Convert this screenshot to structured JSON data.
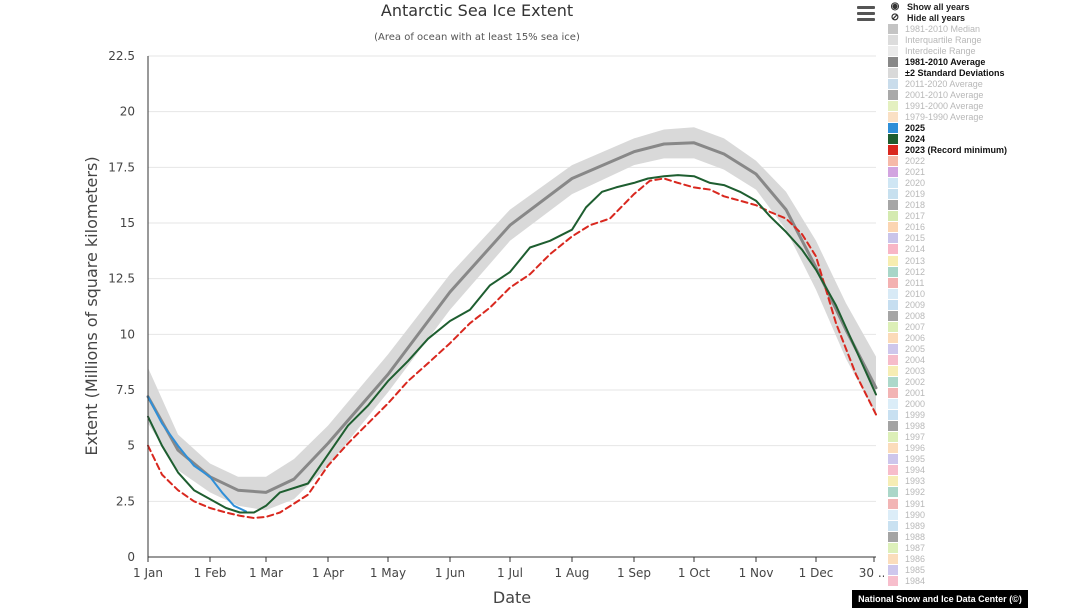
{
  "chart_data": {
    "type": "line",
    "title": "Antarctic Sea Ice Extent",
    "subtitle": "(Area of ocean with at least 15% sea ice)",
    "xlabel": "Date",
    "ylabel": "Extent (Millions of square kilometers)",
    "ylim": [
      0,
      22.5
    ],
    "xlim": [
      1,
      365
    ],
    "x_ticks": [
      {
        "label": "1 Jan",
        "day": 1
      },
      {
        "label": "1 Feb",
        "day": 32
      },
      {
        "label": "1 Mar",
        "day": 60
      },
      {
        "label": "1 Apr",
        "day": 91
      },
      {
        "label": "1 May",
        "day": 121
      },
      {
        "label": "1 Jun",
        "day": 152
      },
      {
        "label": "1 Jul",
        "day": 182
      },
      {
        "label": "1 Aug",
        "day": 213
      },
      {
        "label": "1 Sep",
        "day": 244
      },
      {
        "label": "1 Oct",
        "day": 274
      },
      {
        "label": "1 Nov",
        "day": 305
      },
      {
        "label": "1 Dec",
        "day": 335
      },
      {
        "label": "30 ...",
        "day": 364
      }
    ],
    "y_ticks": [
      "0",
      "2.5",
      "5",
      "7.5",
      "10",
      "12.5",
      "15",
      "17.5",
      "20",
      "22.5"
    ],
    "y_tick_values": [
      0,
      2.5,
      5,
      7.5,
      10,
      12.5,
      15,
      17.5,
      20,
      22.5
    ],
    "grid": "horizontal",
    "legend_position": "right",
    "band": {
      "name": "±2 Standard Deviations",
      "color": "#d9d9d9",
      "x": [
        1,
        16,
        32,
        46,
        60,
        74,
        91,
        121,
        152,
        182,
        213,
        244,
        259,
        274,
        289,
        305,
        320,
        335,
        350,
        365
      ],
      "low": [
        6.0,
        3.9,
        2.9,
        2.3,
        2.1,
        2.6,
        4.1,
        7.4,
        11.1,
        14.2,
        16.3,
        17.6,
        17.9,
        17.9,
        17.4,
        16.5,
        14.7,
        12.0,
        8.9,
        6.4
      ],
      "high": [
        8.5,
        5.5,
        4.2,
        3.6,
        3.6,
        4.4,
        5.9,
        9.1,
        12.7,
        15.6,
        17.6,
        18.8,
        19.2,
        19.3,
        18.8,
        17.8,
        16.4,
        14.2,
        11.4,
        9.0
      ]
    },
    "series": [
      {
        "name": "1981-2010 Average",
        "color": "#888888",
        "dash": "none",
        "width": 3,
        "x": [
          1,
          16,
          32,
          46,
          60,
          74,
          91,
          121,
          152,
          182,
          213,
          244,
          259,
          274,
          289,
          305,
          320,
          335,
          350,
          365
        ],
        "y": [
          7.2,
          4.8,
          3.6,
          3.0,
          2.9,
          3.5,
          5.1,
          8.2,
          11.9,
          14.9,
          17.0,
          18.2,
          18.55,
          18.6,
          18.1,
          17.2,
          15.6,
          13.0,
          10.2,
          7.6
        ]
      },
      {
        "name": "2025",
        "color": "#2f8fd8",
        "dash": "none",
        "width": 2,
        "x": [
          1,
          8,
          16,
          24,
          32,
          38,
          44,
          50
        ],
        "y": [
          7.2,
          6.0,
          5.0,
          4.1,
          3.6,
          2.9,
          2.3,
          2.05
        ]
      },
      {
        "name": "2024",
        "color": "#1e5e30",
        "dash": "none",
        "width": 2,
        "x": [
          1,
          8,
          16,
          24,
          32,
          40,
          47,
          54,
          60,
          67,
          74,
          81,
          91,
          101,
          111,
          121,
          131,
          141,
          152,
          162,
          172,
          182,
          192,
          202,
          213,
          220,
          228,
          235,
          244,
          251,
          259,
          266,
          274,
          282,
          289,
          297,
          305,
          312,
          320,
          328,
          335,
          345,
          355,
          365
        ],
        "y": [
          6.3,
          5.0,
          3.8,
          3.0,
          2.6,
          2.2,
          2.0,
          2.0,
          2.3,
          2.9,
          3.1,
          3.3,
          4.6,
          5.9,
          6.8,
          7.9,
          8.8,
          9.8,
          10.6,
          11.1,
          12.2,
          12.8,
          13.9,
          14.2,
          14.7,
          15.7,
          16.4,
          16.6,
          16.8,
          17.0,
          17.1,
          17.15,
          17.1,
          16.8,
          16.7,
          16.4,
          16.0,
          15.3,
          14.6,
          13.8,
          12.9,
          11.3,
          9.3,
          7.3
        ]
      },
      {
        "name": "2023 (Record minimum)",
        "color": "#d9281f",
        "dash": "6,4",
        "width": 2,
        "x": [
          1,
          8,
          16,
          24,
          32,
          40,
          47,
          54,
          60,
          67,
          74,
          81,
          91,
          101,
          111,
          121,
          131,
          141,
          152,
          162,
          172,
          182,
          192,
          202,
          213,
          222,
          232,
          244,
          252,
          259,
          266,
          274,
          282,
          289,
          297,
          305,
          312,
          320,
          328,
          335,
          345,
          355,
          365
        ],
        "y": [
          5.0,
          3.7,
          3.0,
          2.5,
          2.2,
          2.0,
          1.85,
          1.75,
          1.8,
          2.0,
          2.4,
          2.8,
          4.1,
          5.1,
          6.0,
          6.9,
          7.9,
          8.7,
          9.6,
          10.5,
          11.2,
          12.1,
          12.7,
          13.6,
          14.4,
          14.9,
          15.2,
          16.3,
          16.9,
          17.0,
          16.8,
          16.6,
          16.5,
          16.2,
          16.0,
          15.8,
          15.5,
          15.2,
          14.5,
          13.5,
          10.5,
          8.2,
          6.4
        ]
      }
    ]
  },
  "menu": {
    "icon": "hamburger-menu-icon"
  },
  "legend": {
    "controls": [
      {
        "label": "Show all years",
        "icon": "eye-icon",
        "glyph": "◉"
      },
      {
        "label": "Hide all years",
        "icon": "eye-off-icon",
        "glyph": "⊘"
      }
    ],
    "items": [
      {
        "label": "1981-2010 Median",
        "color": "#c4c4c4",
        "active": false
      },
      {
        "label": "Interquartile Range",
        "color": "#dcdcdc",
        "active": false
      },
      {
        "label": "Interdecile Range",
        "color": "#eaeaea",
        "active": false
      },
      {
        "label": "1981-2010 Average",
        "color": "#888888",
        "active": true
      },
      {
        "label": "±2 Standard Deviations",
        "color": "#d9d9d9",
        "active": true
      },
      {
        "label": "2011-2020 Average",
        "color": "#c9dceb",
        "active": false
      },
      {
        "label": "2001-2010 Average",
        "color": "#a9a9a9",
        "active": false
      },
      {
        "label": "1991-2000 Average",
        "color": "#e4f0c0",
        "active": false
      },
      {
        "label": "1979-1990 Average",
        "color": "#fae0c4",
        "active": false
      },
      {
        "label": "2025",
        "color": "#2f8fd8",
        "active": true
      },
      {
        "label": "2024",
        "color": "#1e5e30",
        "active": true
      },
      {
        "label": "2023 (Record minimum)",
        "color": "#d9281f",
        "active": true
      },
      {
        "label": "2022",
        "color": "#f6b9a8",
        "active": false
      },
      {
        "label": "2021",
        "color": "#d2a4e0",
        "active": false
      },
      {
        "label": "2020",
        "color": "#cfe6f4",
        "active": false
      },
      {
        "label": "2019",
        "color": "#c7e0ef",
        "active": false
      },
      {
        "label": "2018",
        "color": "#a6a6a6",
        "active": false
      },
      {
        "label": "2017",
        "color": "#d4eab0",
        "active": false
      },
      {
        "label": "2016",
        "color": "#fbd5b2",
        "active": false
      },
      {
        "label": "2015",
        "color": "#c9c4ea",
        "active": false
      },
      {
        "label": "2014",
        "color": "#f8b6c6",
        "active": false
      },
      {
        "label": "2013",
        "color": "#f7edb0",
        "active": false
      },
      {
        "label": "2012",
        "color": "#a8d6c8",
        "active": false
      },
      {
        "label": "2011",
        "color": "#f3b1b1",
        "active": false
      },
      {
        "label": "2010",
        "color": "#d8eaf6",
        "active": false
      },
      {
        "label": "2009",
        "color": "#c6def0",
        "active": false
      },
      {
        "label": "2008",
        "color": "#a5a5a5",
        "active": false
      },
      {
        "label": "2007",
        "color": "#dcefb7",
        "active": false
      },
      {
        "label": "2006",
        "color": "#fbdab8",
        "active": false
      },
      {
        "label": "2005",
        "color": "#cec7ec",
        "active": false
      },
      {
        "label": "2004",
        "color": "#f6bcca",
        "active": false
      },
      {
        "label": "2003",
        "color": "#f6edb4",
        "active": false
      },
      {
        "label": "2002",
        "color": "#acd8ca",
        "active": false
      },
      {
        "label": "2001",
        "color": "#f2b4b4",
        "active": false
      },
      {
        "label": "2000",
        "color": "#dbedf8",
        "active": false
      },
      {
        "label": "1999",
        "color": "#c8e0f1",
        "active": false
      },
      {
        "label": "1998",
        "color": "#a3a3a3",
        "active": false
      },
      {
        "label": "1997",
        "color": "#dcefb8",
        "active": false
      },
      {
        "label": "1996",
        "color": "#fbdcbb",
        "active": false
      },
      {
        "label": "1995",
        "color": "#cdc6ec",
        "active": false
      },
      {
        "label": "1994",
        "color": "#f7bdcb",
        "active": false
      },
      {
        "label": "1993",
        "color": "#f6edb5",
        "active": false
      },
      {
        "label": "1992",
        "color": "#abd7c9",
        "active": false
      },
      {
        "label": "1991",
        "color": "#f2b5b5",
        "active": false
      },
      {
        "label": "1990",
        "color": "#dcedf8",
        "active": false
      },
      {
        "label": "1989",
        "color": "#c9e1f1",
        "active": false
      },
      {
        "label": "1988",
        "color": "#a4a4a4",
        "active": false
      },
      {
        "label": "1987",
        "color": "#ddf0ba",
        "active": false
      },
      {
        "label": "1986",
        "color": "#fbddbc",
        "active": false
      },
      {
        "label": "1985",
        "color": "#cec7ed",
        "active": false
      },
      {
        "label": "1984",
        "color": "#f7becc",
        "active": false
      }
    ]
  },
  "credit": "National Snow and Ice Data Center (©)"
}
